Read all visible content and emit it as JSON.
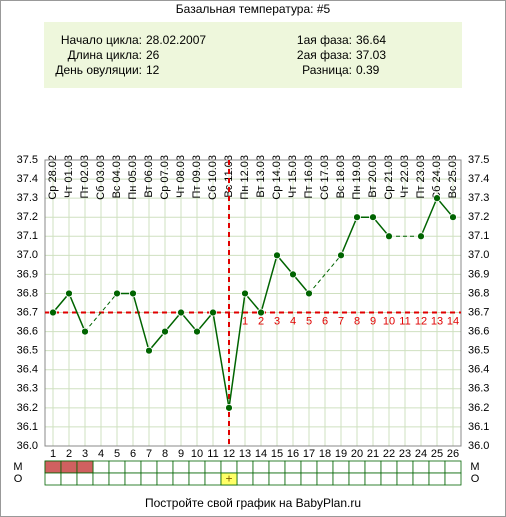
{
  "chart_data": {
    "type": "line",
    "title": "Базальная температура: #5",
    "info": [
      {
        "label": "Начало цикла:",
        "value": "28.02.2007"
      },
      {
        "label": "Длина цикла:",
        "value": 26
      },
      {
        "label": "День овуляции:",
        "value": 12
      },
      {
        "label": "1ая фаза:",
        "value": 36.64
      },
      {
        "label": "2ая фаза:",
        "value": 37.03
      },
      {
        "label": "Разница:",
        "value": 0.39
      }
    ],
    "categories": [
      1,
      2,
      3,
      4,
      5,
      6,
      7,
      8,
      9,
      10,
      11,
      12,
      13,
      14,
      15,
      16,
      17,
      18,
      19,
      20,
      21,
      22,
      23,
      24,
      25,
      26
    ],
    "dates": [
      "Ср 28.02",
      "Чт 01.03",
      "Пт 02.03",
      "Сб 03.03",
      "Вс 04.03",
      "Пн 05.03",
      "Вт 06.03",
      "Ср 07.03",
      "Чт 08.03",
      "Пт 09.03",
      "Сб 10.03",
      "Вс 11.03",
      "Пн 12.03",
      "Вт 13.03",
      "Ср 14.03",
      "Чт 15.03",
      "Пт 16.03",
      "Сб 17.03",
      "Вс 18.03",
      "Пн 19.03",
      "Вт 20.03",
      "Ср 21.03",
      "Чт 22.03",
      "Пт 23.03",
      "Сб 24.03",
      "Вс 25.03"
    ],
    "values": [
      36.7,
      36.8,
      36.6,
      null,
      36.8,
      36.8,
      36.5,
      36.6,
      36.7,
      36.6,
      36.7,
      36.2,
      36.8,
      36.7,
      37.0,
      36.9,
      36.8,
      null,
      37.0,
      37.2,
      37.2,
      37.1,
      null,
      37.1,
      37.3,
      37.2
    ],
    "color": "#006400",
    "ylim": [
      36.0,
      37.5
    ],
    "yticks": [
      {
        "value": 36.0,
        "label": "36.0"
      },
      36.1,
      36.2,
      36.3,
      36.4,
      36.5,
      36.6,
      36.7,
      36.8,
      36.9,
      {
        "value": 37.0,
        "label": "37.0"
      },
      37.1,
      37.2,
      37.3,
      37.4,
      37.5
    ],
    "grid": true,
    "coverline": 36.7,
    "marker_color": "#e00000",
    "luteal_days": [
      1,
      2,
      3,
      4,
      5,
      6,
      7,
      8,
      9,
      10,
      11,
      12,
      13,
      14
    ],
    "rows": [
      {
        "label": "М",
        "days": [
          1,
          2,
          3
        ],
        "color": "#d06060"
      },
      {
        "label": "О",
        "days": [
          12
        ],
        "mark": "+",
        "color": "#ffff66"
      }
    ],
    "footer": "Постройте свой график на BabyPlan.ru"
  }
}
